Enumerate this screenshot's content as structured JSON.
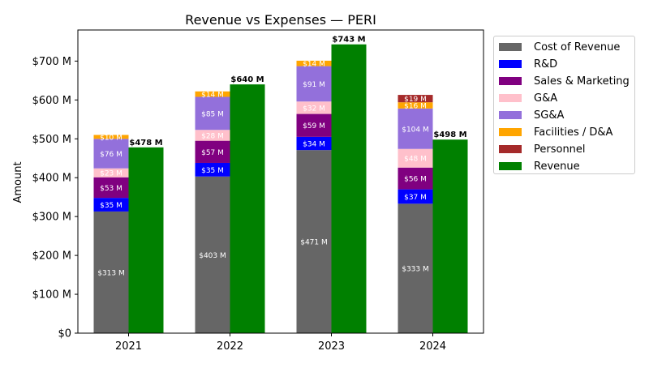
{
  "chart_data": {
    "type": "bar",
    "title": "Revenue vs Expenses — PERI",
    "xlabel": "",
    "ylabel": "Amount",
    "ylim": [
      0,
      780
    ],
    "yticks": [
      0,
      100,
      200,
      300,
      400,
      500,
      600,
      700
    ],
    "ytick_labels": [
      "$0",
      "$100 M",
      "$200 M",
      "$300 M",
      "$400 M",
      "$500 M",
      "$600 M",
      "$700 M"
    ],
    "categories": [
      "2021",
      "2022",
      "2023",
      "2024"
    ],
    "legend_position": "outside-top-right",
    "stacked_series": [
      {
        "name": "Cost of Revenue",
        "color": "#666666",
        "label_color": "#ffffff",
        "values": [
          313,
          403,
          471,
          333
        ],
        "labels": [
          "$313 M",
          "$403 M",
          "$471 M",
          "$333 M"
        ]
      },
      {
        "name": "R&D",
        "color": "#0000ff",
        "label_color": "#ffffff",
        "values": [
          35,
          35,
          34,
          37
        ],
        "labels": [
          "$35 M",
          "$35 M",
          "$34 M",
          "$37 M"
        ]
      },
      {
        "name": "Sales & Marketing",
        "color": "#800080",
        "label_color": "#ffffff",
        "values": [
          53,
          57,
          59,
          56
        ],
        "labels": [
          "$53 M",
          "$57 M",
          "$59 M",
          "$56 M"
        ]
      },
      {
        "name": "G&A",
        "color": "#ffc0cb",
        "label_color": "#ffffff",
        "values": [
          23,
          28,
          32,
          48
        ],
        "labels": [
          "$23 M",
          "$28 M",
          "$32 M",
          "$48 M"
        ]
      },
      {
        "name": "SG&A",
        "color": "#9370db",
        "label_color": "#ffffff",
        "values": [
          76,
          85,
          91,
          104
        ],
        "labels": [
          "$76 M",
          "$85 M",
          "$91 M",
          "$104 M"
        ]
      },
      {
        "name": "Facilities / D&A",
        "color": "#ffa500",
        "label_color": "#ffffff",
        "values": [
          10,
          14,
          14,
          16
        ],
        "labels": [
          "$10 M",
          "$14 M",
          "$14 M",
          "$16 M"
        ]
      },
      {
        "name": "Personnel",
        "color": "#a52a2a",
        "label_color": "#ffffff",
        "values": [
          0,
          0,
          0,
          19
        ],
        "labels": [
          "",
          "",
          "",
          "$19 M"
        ]
      }
    ],
    "revenue_series": {
      "name": "Revenue",
      "color": "#008000",
      "values": [
        478,
        640,
        743,
        498
      ],
      "labels": [
        "$478 M",
        "$640 M",
        "$743 M",
        "$498 M"
      ]
    }
  }
}
